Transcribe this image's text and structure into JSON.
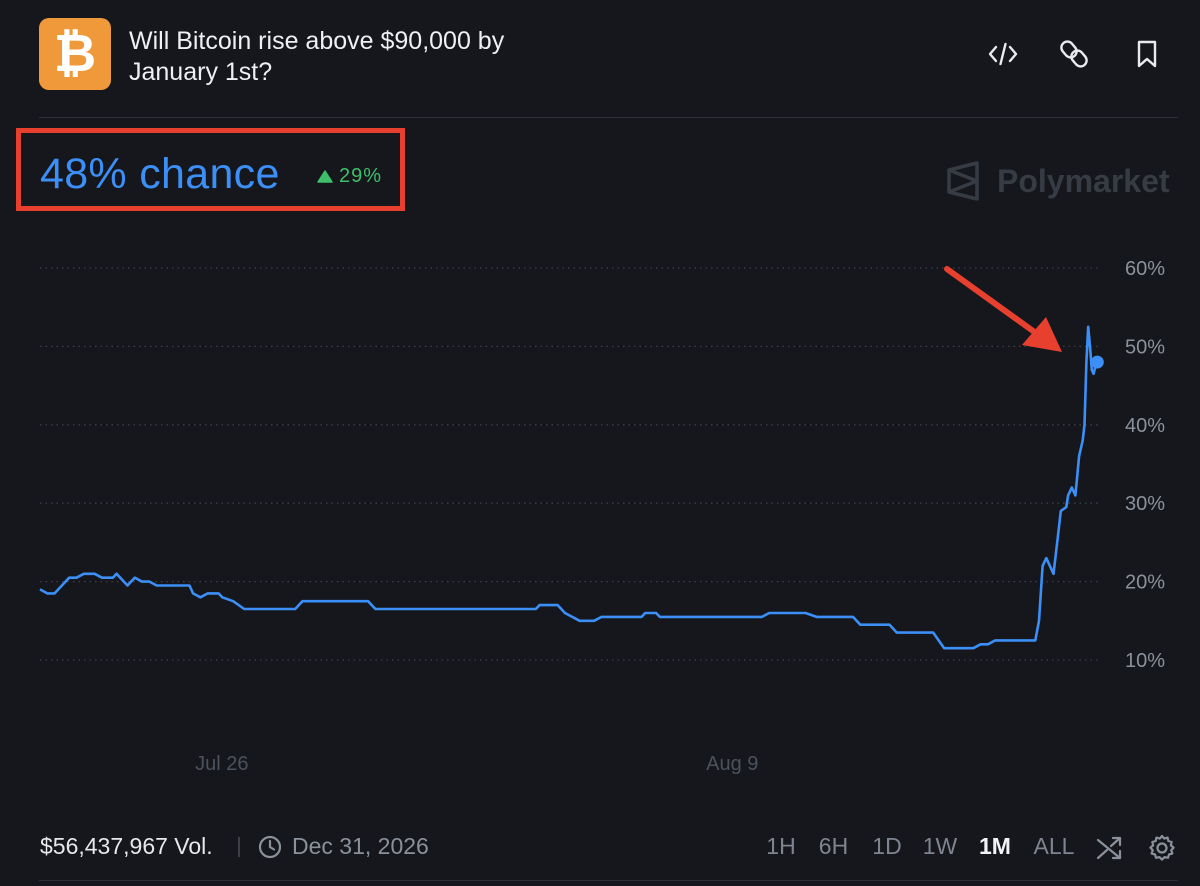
{
  "header": {
    "logo_symbol": "₿",
    "title": "Will Bitcoin rise above $90,000 by January 1st?",
    "buttons": [
      "embed-icon",
      "link-icon",
      "bookmark-icon"
    ]
  },
  "summary": {
    "chance": "48% chance",
    "delta": "29%",
    "delta_direction": "up",
    "brand": "Polymarket"
  },
  "colors": {
    "accent": "#3b8ff6",
    "positive": "#3fbf6a",
    "logo": "#f0993a",
    "highlight": "#e8402f",
    "background": "#15171c"
  },
  "chart_data": {
    "type": "line",
    "x_tick_labels": [
      "Jul 26",
      "Aug 9"
    ],
    "y_tick_labels": [
      "60%",
      "50%",
      "40%",
      "30%",
      "20%",
      "10%"
    ],
    "y_ticks": [
      60,
      50,
      40,
      30,
      20,
      10
    ],
    "ylim": [
      0,
      60
    ],
    "grid": true,
    "x_range_days": [
      0,
      28.8
    ],
    "x_tick_positions_days": [
      4,
      18
    ],
    "series": [
      {
        "values_xy": [
          [
            0,
            19
          ],
          [
            0.2,
            18.5
          ],
          [
            0.4,
            18.5
          ],
          [
            0.6,
            19.5
          ],
          [
            0.8,
            20.5
          ],
          [
            1.0,
            20.5
          ],
          [
            1.2,
            21
          ],
          [
            1.5,
            21
          ],
          [
            1.7,
            20.5
          ],
          [
            2.0,
            20.5
          ],
          [
            2.1,
            21
          ],
          [
            2.3,
            20
          ],
          [
            2.4,
            19.5
          ],
          [
            2.6,
            20.5
          ],
          [
            2.8,
            20
          ],
          [
            3.0,
            20
          ],
          [
            3.2,
            19.5
          ],
          [
            3.5,
            19.5
          ],
          [
            3.7,
            19.5
          ],
          [
            4.1,
            19.5
          ],
          [
            4.2,
            18.5
          ],
          [
            4.4,
            18
          ],
          [
            4.6,
            18.5
          ],
          [
            4.9,
            18.5
          ],
          [
            5.0,
            18
          ],
          [
            5.3,
            17.5
          ],
          [
            5.6,
            16.5
          ],
          [
            6.0,
            16.5
          ],
          [
            6.9,
            16.5
          ],
          [
            7.0,
            16.5
          ],
          [
            7.2,
            17.5
          ],
          [
            8.0,
            17.5
          ],
          [
            9.0,
            17.5
          ],
          [
            9.2,
            16.5
          ],
          [
            10.0,
            16.5
          ],
          [
            11.0,
            16.5
          ],
          [
            12.0,
            16.5
          ],
          [
            13.0,
            16.5
          ],
          [
            13.6,
            16.5
          ],
          [
            13.7,
            17
          ],
          [
            14.2,
            17
          ],
          [
            14.4,
            16
          ],
          [
            14.8,
            15
          ],
          [
            15.2,
            15
          ],
          [
            15.4,
            15.5
          ],
          [
            15.6,
            15.5
          ],
          [
            16.5,
            15.5
          ],
          [
            16.6,
            16
          ],
          [
            16.9,
            16
          ],
          [
            17.0,
            15.5
          ],
          [
            17.2,
            15.5
          ],
          [
            18.0,
            15.5
          ],
          [
            19.0,
            15.5
          ],
          [
            19.8,
            15.5
          ],
          [
            20.0,
            16
          ],
          [
            21.0,
            16
          ],
          [
            21.3,
            15.5
          ],
          [
            22.3,
            15.5
          ],
          [
            22.5,
            14.5
          ],
          [
            23.3,
            14.5
          ],
          [
            23.5,
            13.5
          ],
          [
            24.5,
            13.5
          ],
          [
            24.8,
            11.5
          ],
          [
            25.2,
            11.5
          ],
          [
            25.6,
            11.5
          ],
          [
            25.8,
            12
          ],
          [
            26.0,
            12
          ],
          [
            26.2,
            12.5
          ],
          [
            27.0,
            12.5
          ],
          [
            27.3,
            12.5
          ],
          [
            27.4,
            15
          ],
          [
            27.5,
            22
          ],
          [
            27.6,
            23
          ],
          [
            27.7,
            22
          ],
          [
            27.8,
            21
          ],
          [
            27.9,
            25
          ],
          [
            28.0,
            29
          ],
          [
            28.15,
            29.5
          ],
          [
            28.2,
            31
          ],
          [
            28.3,
            32
          ],
          [
            28.4,
            31
          ],
          [
            28.5,
            36
          ],
          [
            28.55,
            37
          ],
          [
            28.6,
            38
          ],
          [
            28.65,
            40
          ],
          [
            28.7,
            48
          ],
          [
            28.75,
            52.5
          ],
          [
            28.8,
            50
          ],
          [
            28.85,
            47
          ],
          [
            28.9,
            46.5
          ],
          [
            28.95,
            47.5
          ],
          [
            29.0,
            48
          ]
        ],
        "last_value": 48
      }
    ]
  },
  "footer": {
    "volume": "$56,437,967 Vol.",
    "end_date": "Dec 31, 2026",
    "ranges": [
      "1H",
      "6H",
      "1D",
      "1W",
      "1M",
      "ALL"
    ],
    "active_range": "1M"
  }
}
